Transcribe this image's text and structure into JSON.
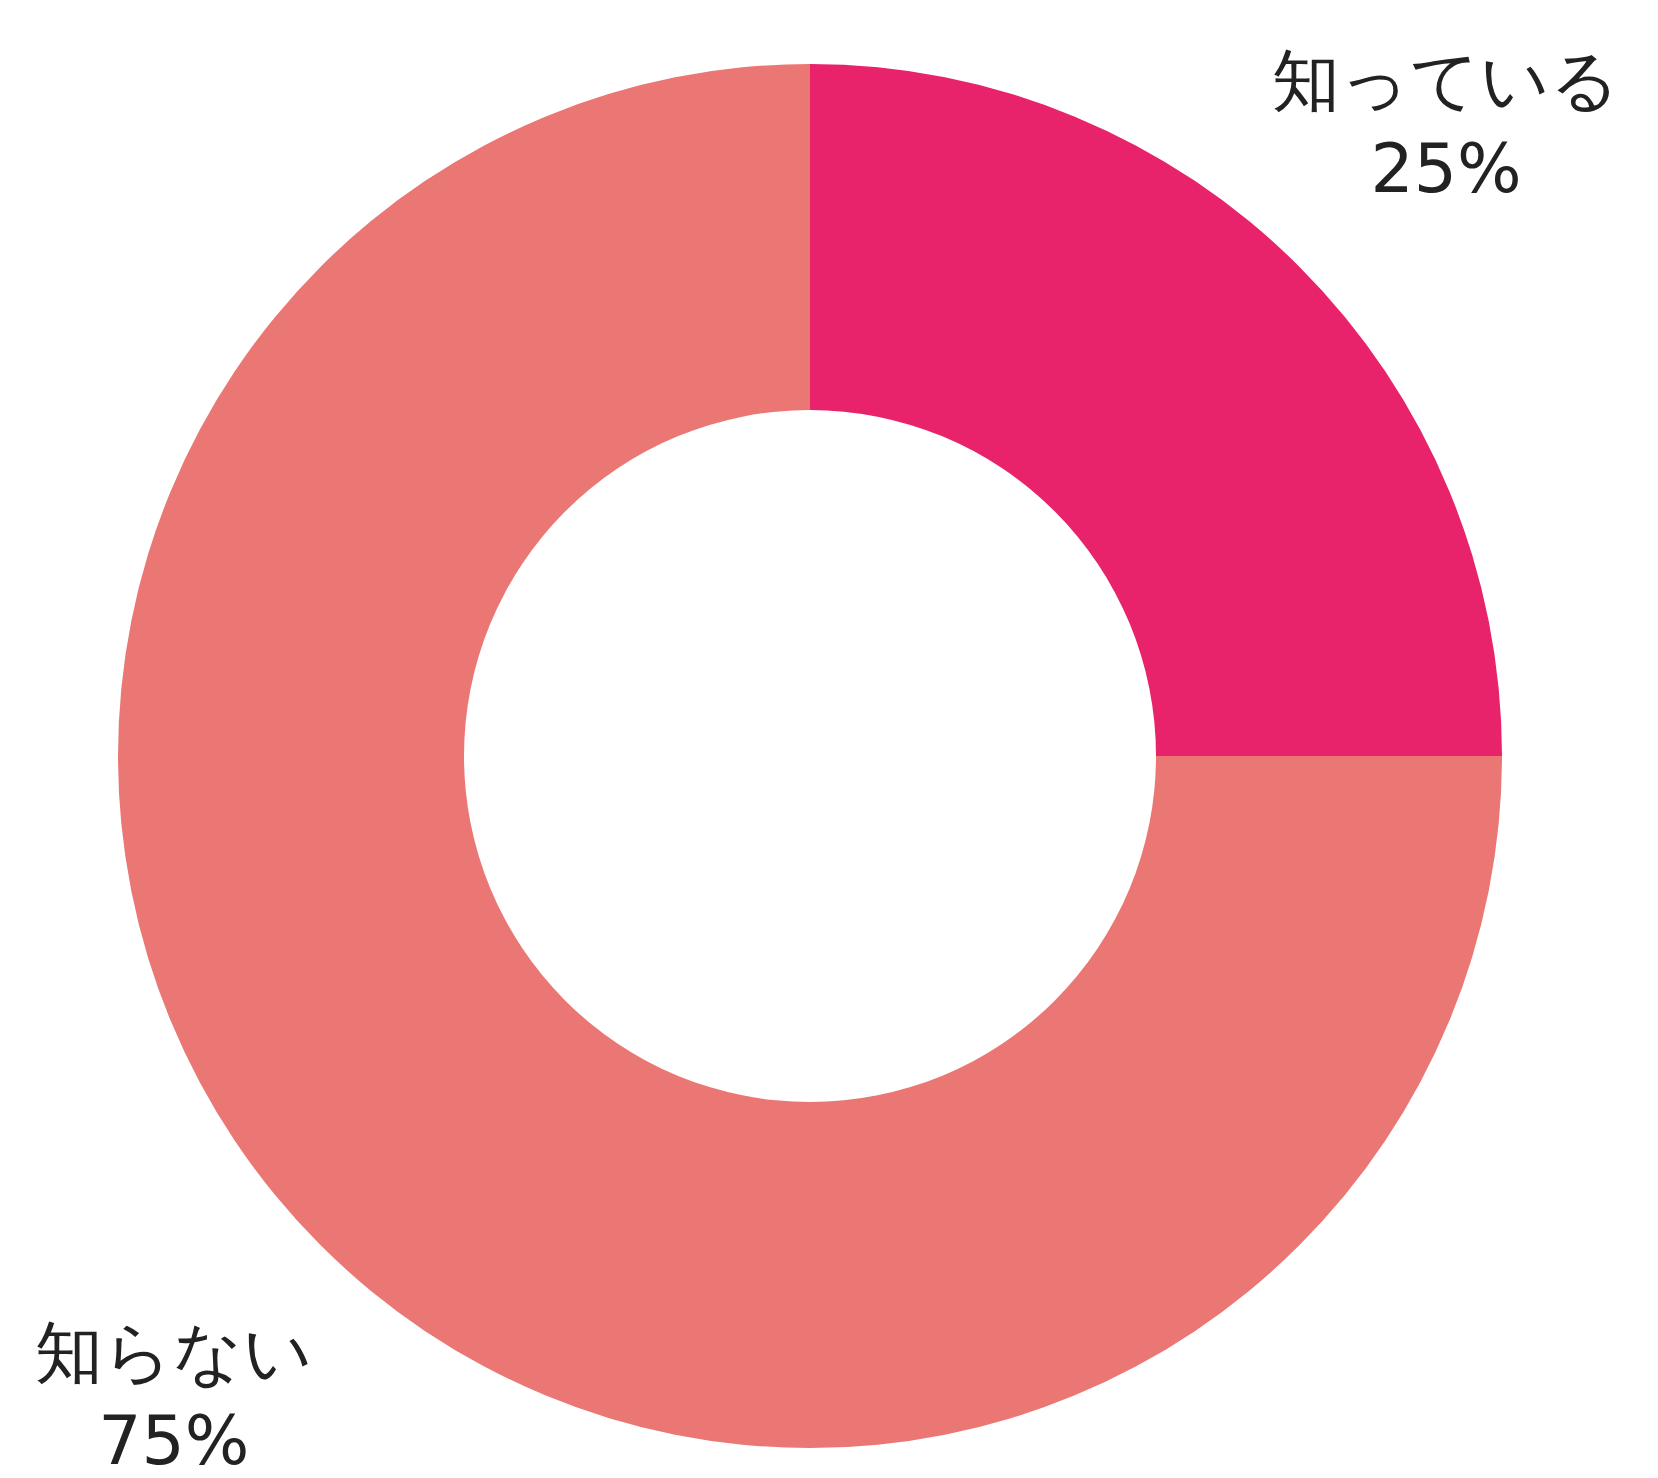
{
  "chart_data": {
    "type": "donut",
    "categories": [
      "知っている",
      "知らない"
    ],
    "values": [
      25,
      75
    ],
    "colors": [
      "#e8226b",
      "#eb7774"
    ],
    "value_labels": [
      "25%",
      "75%"
    ],
    "legend": false
  }
}
